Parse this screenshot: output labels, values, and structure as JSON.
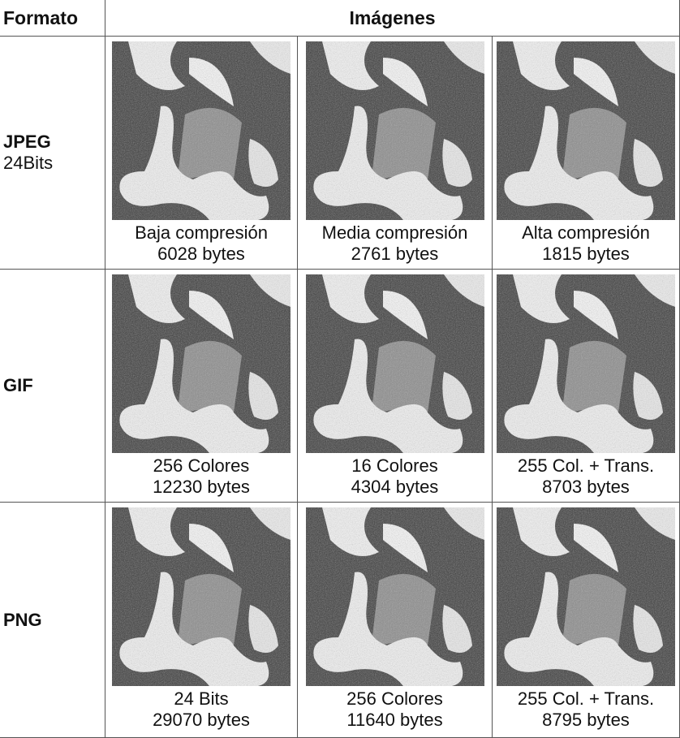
{
  "header": {
    "format": "Formato",
    "images": "Imágenes"
  },
  "rows": [
    {
      "format": "JPEG",
      "subformat": "24Bits",
      "cells": [
        {
          "caption": "Baja compresión",
          "size": "6028 bytes"
        },
        {
          "caption": "Media compresión",
          "size": "2761 bytes"
        },
        {
          "caption": "Alta compresión",
          "size": "1815 bytes"
        }
      ]
    },
    {
      "format": "GIF",
      "cells": [
        {
          "caption": "256 Colores",
          "size": "12230 bytes"
        },
        {
          "caption": "16 Colores",
          "size": "4304 bytes"
        },
        {
          "caption": "255 Col. + Trans.",
          "size": "8703 bytes"
        }
      ]
    },
    {
      "format": "PNG",
      "cells": [
        {
          "caption": "24 Bits",
          "size": "29070 bytes"
        },
        {
          "caption": "256 Colores",
          "size": "11640 bytes"
        },
        {
          "caption": "255 Col. + Trans.",
          "size": "8795 bytes"
        }
      ]
    }
  ]
}
